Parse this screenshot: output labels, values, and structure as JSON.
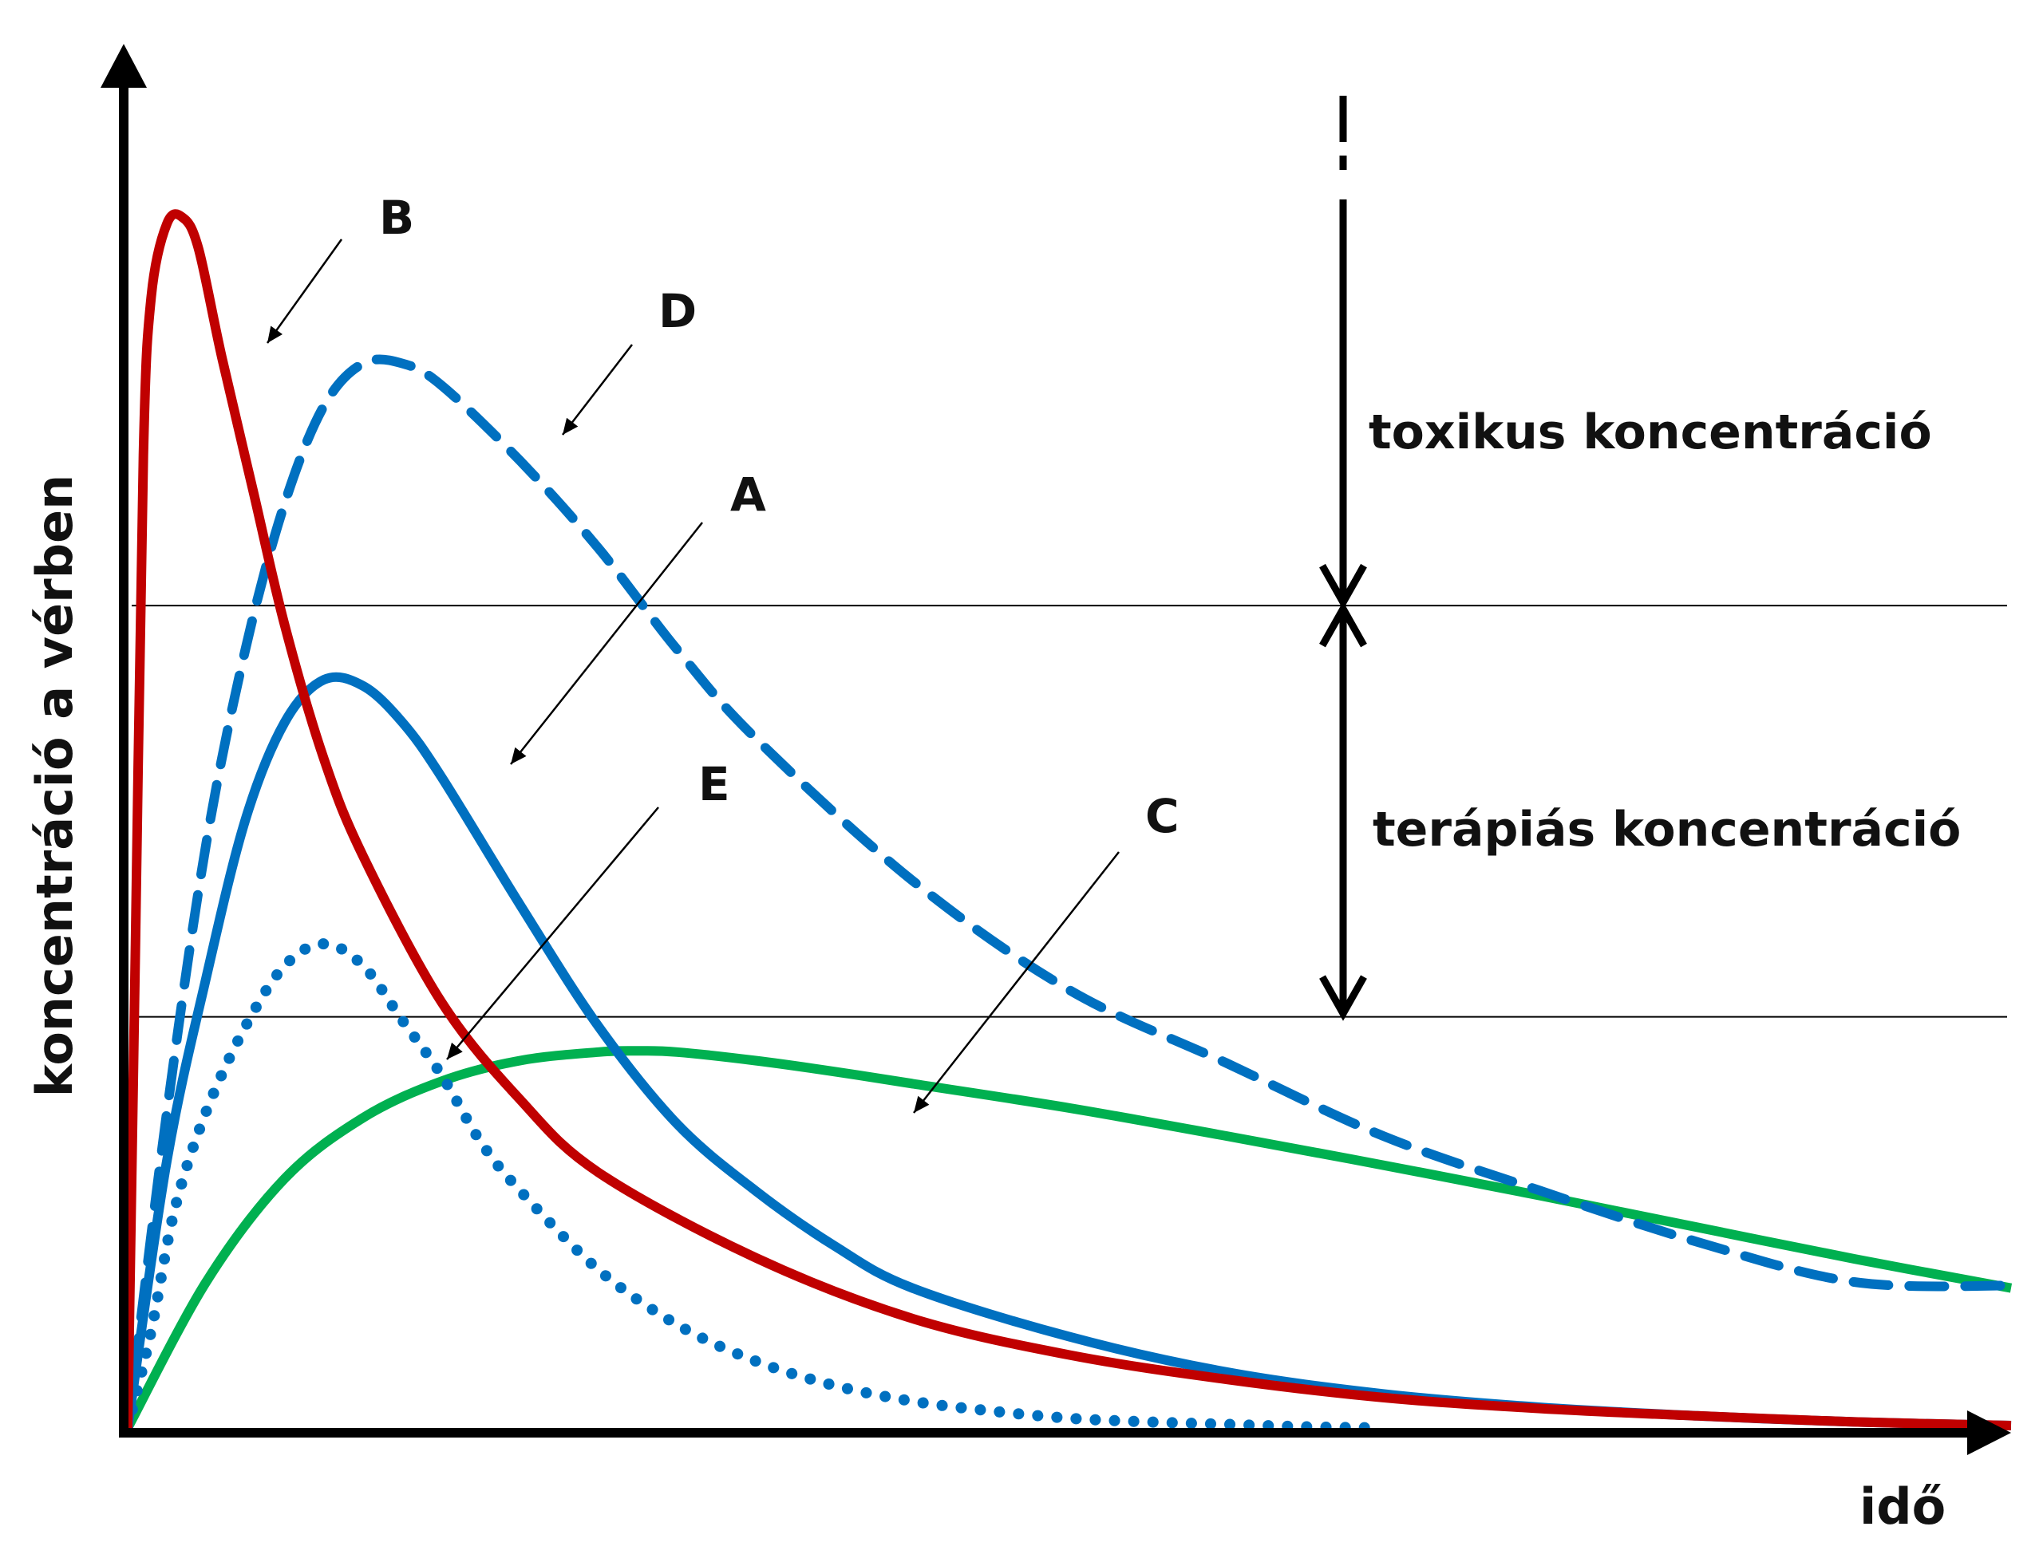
{
  "chart_data": {
    "type": "line",
    "title": "",
    "xlabel": "idő",
    "ylabel": "koncentráció a vérben",
    "x_ticks": [],
    "y_ticks": [],
    "grid": false,
    "legend": "none",
    "xlim": [
      0,
      24
    ],
    "ylim": [
      0,
      100
    ],
    "thresholds": [
      {
        "name": "therapeutic-lower",
        "value": 33.8
      },
      {
        "name": "toxic-lower",
        "value": 67.6
      }
    ],
    "range_labels": {
      "toxic": "toxikus koncentráció",
      "therapeutic": "terápiás koncentráció"
    },
    "series": [
      {
        "name": "A",
        "color": "#0070c0",
        "style": "solid",
        "x": [
          0,
          0.5,
          1,
          1.5,
          2,
          2.5,
          3,
          3.5,
          4,
          5,
          6,
          7,
          8,
          9,
          10,
          12,
          14,
          16,
          18,
          20,
          22,
          24
        ],
        "y": [
          0,
          22,
          37,
          50,
          58,
          61.5,
          61,
          58,
          53.5,
          43,
          33,
          25,
          19.5,
          15,
          11.5,
          7.5,
          4.6,
          2.8,
          1.7,
          1.0,
          0.5,
          0.2
        ]
      },
      {
        "name": "B",
        "color": "#c00000",
        "style": "solid",
        "x": [
          0,
          0.1,
          0.2,
          0.3,
          0.5,
          0.7,
          0.9,
          1.2,
          1.6,
          2,
          2.5,
          3,
          4,
          5,
          6,
          8,
          10,
          12,
          14,
          16,
          18,
          20,
          22,
          24
        ],
        "y": [
          0,
          40,
          80,
          93,
          99,
          99.5,
          97,
          88,
          77,
          66,
          55,
          47,
          35,
          27,
          21,
          14,
          9,
          6,
          4,
          2.5,
          1.6,
          1.0,
          0.5,
          0.2
        ]
      },
      {
        "name": "C",
        "color": "#00b050",
        "style": "solid",
        "x": [
          0,
          1,
          2,
          3,
          4,
          5,
          6,
          6.5,
          7,
          8,
          9,
          10,
          12,
          14,
          16,
          18,
          20,
          22,
          24
        ],
        "y": [
          0,
          12,
          20.5,
          25.5,
          28.5,
          30.2,
          30.9,
          31,
          30.9,
          30.2,
          29.3,
          28.3,
          26.3,
          24,
          21.6,
          19.1,
          16.5,
          13.9,
          11.5
        ]
      },
      {
        "name": "D",
        "color": "#0070c0",
        "style": "dashed",
        "x": [
          0,
          0.5,
          1,
          1.5,
          2,
          2.5,
          3,
          3.5,
          4,
          5,
          6,
          7,
          8,
          10,
          12,
          14,
          16,
          18,
          20,
          22,
          24
        ],
        "y": [
          0,
          26,
          48,
          64,
          76,
          84,
          87.5,
          87.5,
          85.7,
          79.5,
          72.3,
          64,
          56.7,
          45,
          36,
          30,
          24,
          19.5,
          15.3,
          12,
          11.7
        ]
      },
      {
        "name": "E",
        "color": "#0070c0",
        "style": "dotted",
        "x": [
          0,
          0.3,
          0.6,
          1,
          1.5,
          2,
          2.5,
          3,
          3.5,
          4,
          4.5,
          5,
          6,
          7,
          8,
          9,
          10,
          11,
          12,
          13,
          14,
          15,
          16
        ],
        "y": [
          0,
          8,
          18,
          26,
          33,
          38,
          39.8,
          38,
          33.5,
          29,
          23.5,
          19.5,
          13,
          8.5,
          5.5,
          3.5,
          2.2,
          1.4,
          0.8,
          0.5,
          0.3,
          0.1,
          0
        ]
      }
    ],
    "annotations": [
      {
        "label": "A",
        "series": "A"
      },
      {
        "label": "B",
        "series": "B"
      },
      {
        "label": "C",
        "series": "C"
      },
      {
        "label": "D",
        "series": "D"
      },
      {
        "label": "E",
        "series": "E"
      }
    ]
  }
}
